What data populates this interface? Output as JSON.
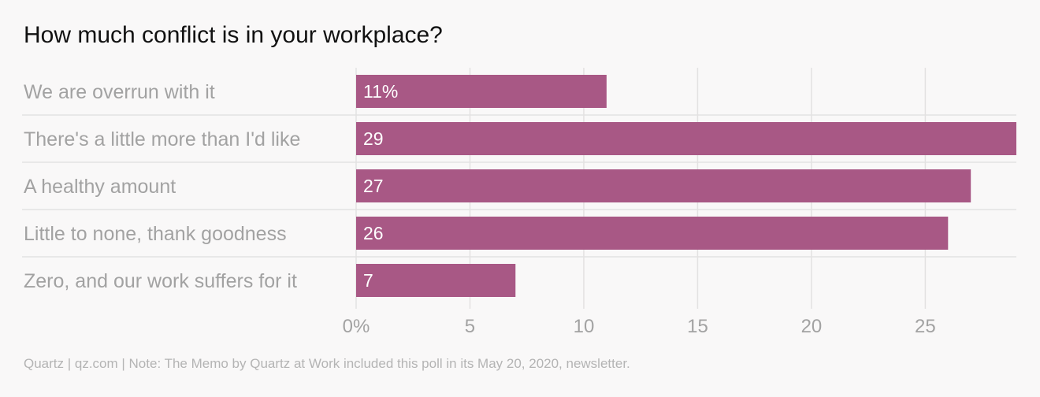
{
  "title": "How much conflict is in your workplace?",
  "footer": "Quartz | qz.com | Note: The Memo by Quartz at Work included this poll in its May 20, 2020, newsletter.",
  "colors": {
    "bar": "#a85885",
    "grid": "#e3e2e2",
    "separator": "#e3e2e2",
    "label": "#a2a2a2",
    "background": "#f9f8f8"
  },
  "chart_data": {
    "type": "bar",
    "orientation": "horizontal",
    "categories": [
      "We are overrun with it",
      "There's a little more than I'd like",
      "A healthy amount",
      "Little to none, thank goodness",
      "Zero, and our work suffers for it"
    ],
    "values": [
      11,
      29,
      27,
      26,
      7
    ],
    "value_labels": [
      "11%",
      "29",
      "27",
      "26",
      "7"
    ],
    "x_ticks": [
      0,
      5,
      10,
      15,
      20,
      25
    ],
    "x_tick_labels": [
      "0%",
      "5",
      "10",
      "15",
      "20",
      "25"
    ],
    "xlim": [
      0,
      29
    ],
    "title": "How much conflict is in your workplace?",
    "xlabel": "",
    "ylabel": "",
    "grid": true
  }
}
